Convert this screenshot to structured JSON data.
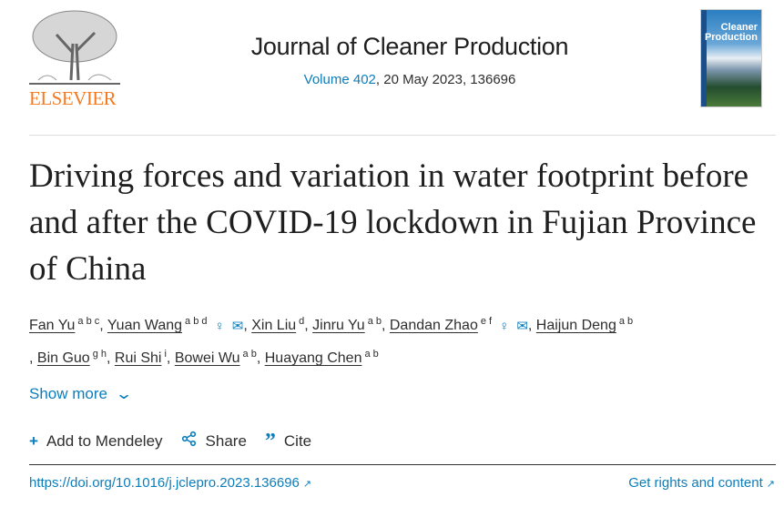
{
  "header": {
    "publisher_logo": "ELSEVIER",
    "journal_title": "Journal of Cleaner Production",
    "volume_link": "Volume 402",
    "volume_rest": ", 20 May 2023, 136696",
    "cover_text": "Cleaner Production"
  },
  "article": {
    "title": "Driving forces and variation in water footprint before and after the COVID-19 lockdown in Fujian Province of China",
    "authors": [
      {
        "name": "Fan Yu",
        "sup": "a b c"
      },
      {
        "name": "Yuan Wang",
        "sup": "a b d",
        "icons": [
          "person-icon",
          "envelope-icon"
        ]
      },
      {
        "name": "Xin Liu",
        "sup": "d"
      },
      {
        "name": "Jinru Yu",
        "sup": "a b"
      },
      {
        "name": "Dandan Zhao",
        "sup": "e f",
        "icons": [
          "person-icon",
          "envelope-icon"
        ]
      },
      {
        "name": "Haijun Deng",
        "sup": "a b"
      },
      {
        "name": "Bin Guo",
        "sup": "g h"
      },
      {
        "name": "Rui Shi",
        "sup": "i"
      },
      {
        "name": "Bowei Wu",
        "sup": "a b"
      },
      {
        "name": "Huayang Chen",
        "sup": "a b"
      }
    ],
    "show_more": "Show more",
    "actions": {
      "mendeley": "Add to Mendeley",
      "share": "Share",
      "cite": "Cite"
    },
    "doi": "https://doi.org/10.1016/j.jclepro.2023.136696",
    "rights": "Get rights and content"
  },
  "colors": {
    "link": "#0c7dbb",
    "elsevier": "#f47a20"
  }
}
